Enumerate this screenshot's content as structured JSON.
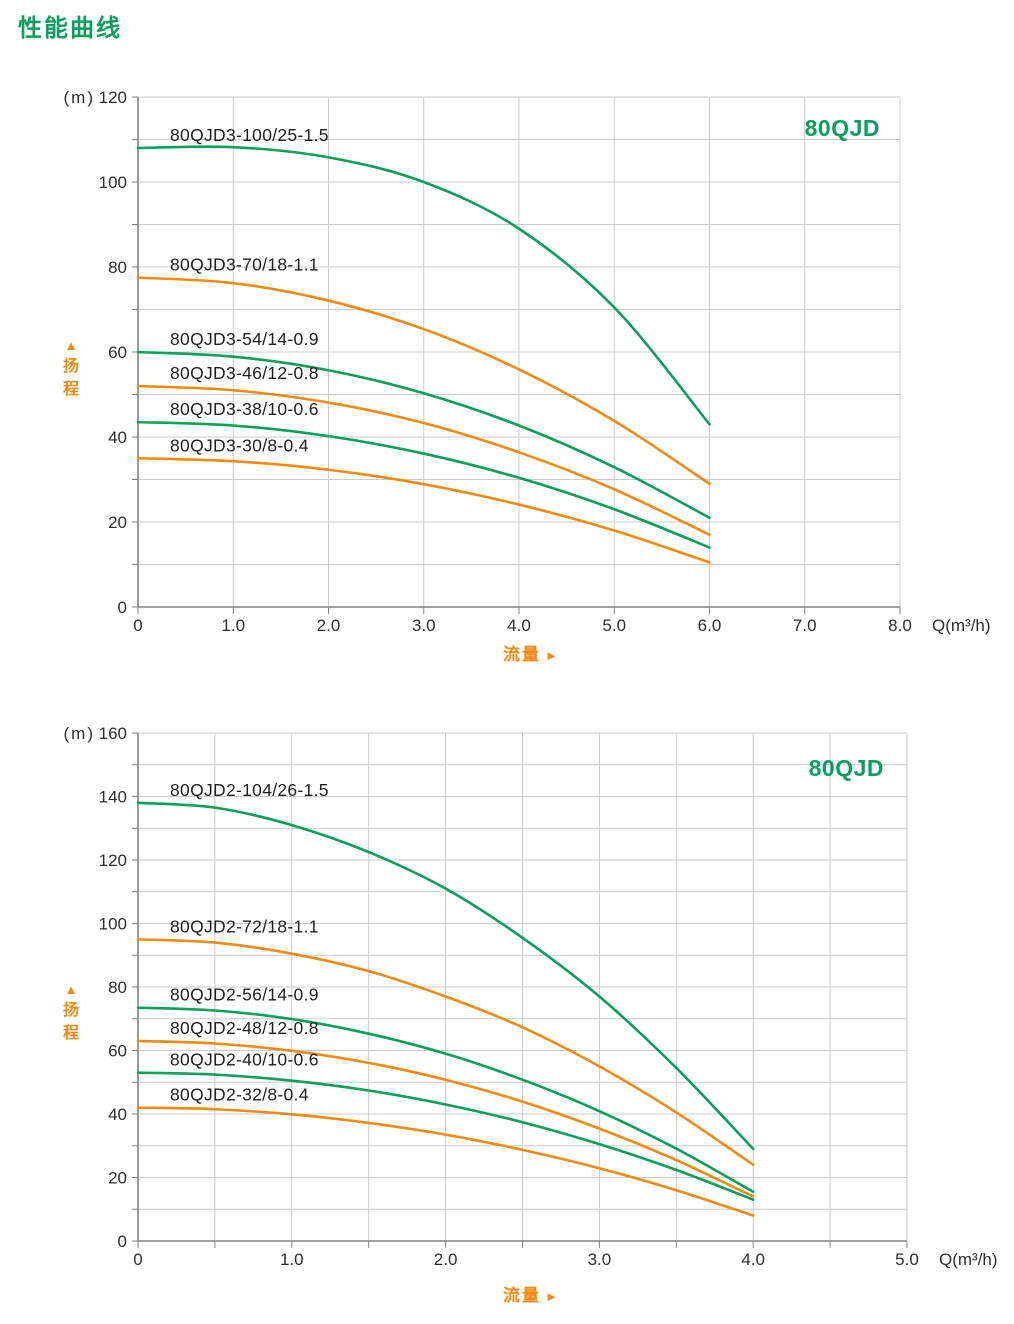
{
  "page_title": "性能曲线",
  "colors": {
    "green": "#0a9f5d",
    "orange": "#f18a10",
    "grid": "#cbcbcb",
    "axis": "#828282",
    "tick_text": "#2e2e2e",
    "curve_label_text": "#1f1f1f"
  },
  "chart_data": [
    {
      "type": "line",
      "title": "80QJD",
      "series_family": "80QJD3",
      "xlabel": "流量",
      "ylabel": "扬程",
      "x_unit": "Q(m³/h)",
      "y_unit": "(m)",
      "y_axis_arrow": "▲",
      "x_axis_arrow": "►",
      "xlim": [
        0,
        8.0
      ],
      "ylim": [
        0,
        120
      ],
      "x_grid_step": 1.0,
      "y_grid_step": 10,
      "x_label_step": 1.0,
      "y_label_step": 20,
      "x_tick_labels": [
        "0",
        "1.0",
        "2.0",
        "3.0",
        "4.0",
        "5.0",
        "6.0",
        "7.0",
        "8.0"
      ],
      "y_tick_labels": [
        "0",
        "20",
        "40",
        "60",
        "80",
        "100",
        "120"
      ],
      "grid": true,
      "legend": "inline-curve-labels",
      "series": [
        {
          "name": "80QJD3-100/25-1.5",
          "color": "green",
          "x": [
            0,
            1,
            2,
            3,
            4,
            5,
            6
          ],
          "y": [
            108,
            108.2,
            105.8,
            100,
            89,
            70.5,
            43
          ]
        },
        {
          "name": "80QJD3-70/18-1.1",
          "color": "orange",
          "x": [
            0,
            1,
            2,
            3,
            4,
            5,
            6
          ],
          "y": [
            77.5,
            76.2,
            72.1,
            65.4,
            55.9,
            43.8,
            29
          ]
        },
        {
          "name": "80QJD3-54/14-0.9",
          "color": "green",
          "x": [
            0,
            1,
            2,
            3,
            4,
            5,
            6
          ],
          "y": [
            60,
            58.9,
            55.7,
            50.3,
            42.7,
            32.9,
            21
          ]
        },
        {
          "name": "80QJD3-46/12-0.8",
          "color": "orange",
          "x": [
            0,
            1,
            2,
            3,
            4,
            5,
            6
          ],
          "y": [
            52,
            51,
            48.1,
            43.3,
            36.4,
            27.7,
            17
          ]
        },
        {
          "name": "80QJD3-38/10-0.6",
          "color": "green",
          "x": [
            0,
            1,
            2,
            3,
            4,
            5,
            6
          ],
          "y": [
            43.5,
            42.7,
            40.2,
            36.1,
            30.4,
            23,
            14
          ]
        },
        {
          "name": "80QJD3-30/8-0.4",
          "color": "orange",
          "x": [
            0,
            1,
            2,
            3,
            4,
            5,
            6
          ],
          "y": [
            35,
            34.3,
            32.3,
            28.9,
            24.1,
            18,
            10.5
          ]
        }
      ]
    },
    {
      "type": "line",
      "title": "80QJD",
      "series_family": "80QJD2",
      "xlabel": "流量",
      "ylabel": "扬程",
      "x_unit": "Q(m³/h)",
      "y_unit": "(m)",
      "y_axis_arrow": "▲",
      "x_axis_arrow": "►",
      "xlim": [
        0,
        5.0
      ],
      "ylim": [
        0,
        160
      ],
      "x_grid_step": 0.5,
      "y_grid_step": 10,
      "x_label_step": 1.0,
      "y_label_step": 20,
      "x_tick_labels": [
        "0",
        "1.0",
        "2.0",
        "3.0",
        "4.0",
        "5.0"
      ],
      "y_tick_labels": [
        "0",
        "20",
        "40",
        "60",
        "80",
        "100",
        "120",
        "140",
        "160"
      ],
      "grid": true,
      "legend": "inline-curve-labels",
      "series": [
        {
          "name": "80QJD2-104/26-1.5",
          "color": "green",
          "x": [
            0,
            0.5,
            1,
            1.5,
            2,
            2.5,
            3,
            3.5,
            4
          ],
          "y": [
            138,
            136.5,
            131,
            122.5,
            111,
            95.5,
            77,
            54.5,
            29
          ]
        },
        {
          "name": "80QJD2-72/18-1.1",
          "color": "orange",
          "x": [
            0,
            0.5,
            1,
            1.5,
            2,
            2.5,
            3,
            3.5,
            4
          ],
          "y": [
            95,
            94,
            90.5,
            85,
            77,
            67.3,
            55,
            40.5,
            24
          ]
        },
        {
          "name": "80QJD2-56/14-0.9",
          "color": "green",
          "x": [
            0,
            0.5,
            1,
            1.5,
            2,
            2.5,
            3,
            3.5,
            4
          ],
          "y": [
            73.5,
            72.6,
            69.9,
            65.3,
            59,
            50.8,
            40.9,
            29.1,
            15.5
          ]
        },
        {
          "name": "80QJD2-48/12-0.8",
          "color": "orange",
          "x": [
            0,
            0.5,
            1,
            1.5,
            2,
            2.5,
            3,
            3.5,
            4
          ],
          "y": [
            63,
            62.2,
            59.9,
            56.1,
            50.8,
            43.9,
            35.4,
            25.5,
            14
          ]
        },
        {
          "name": "80QJD2-40/10-0.6",
          "color": "green",
          "x": [
            0,
            0.5,
            1,
            1.5,
            2,
            2.5,
            3,
            3.5,
            4
          ],
          "y": [
            53,
            52.4,
            50.5,
            47.4,
            43,
            37.4,
            30.5,
            22.4,
            13
          ]
        },
        {
          "name": "80QJD2-32/8-0.4",
          "color": "orange",
          "x": [
            0,
            0.5,
            1,
            1.5,
            2,
            2.5,
            3,
            3.5,
            4
          ],
          "y": [
            42,
            41.5,
            39.9,
            37.2,
            33.5,
            28.7,
            22.9,
            16,
            8
          ]
        }
      ]
    }
  ]
}
